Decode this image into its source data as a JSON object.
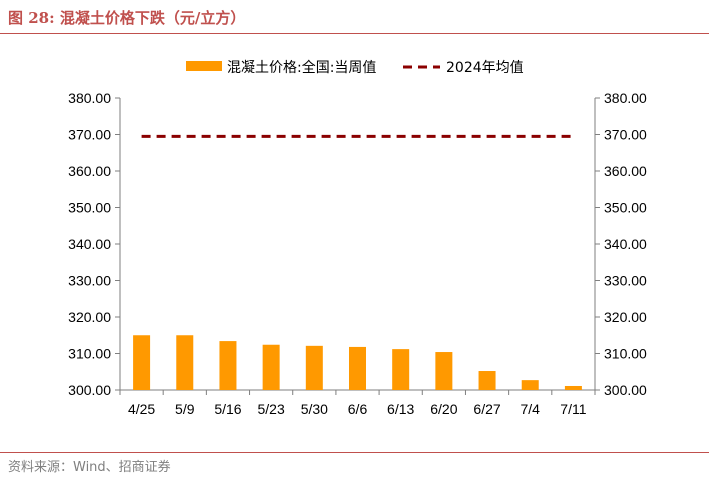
{
  "figure": {
    "title": "图 28:  混凝土价格下跌（元/立方）",
    "source": "资料来源：Wind、招商证券"
  },
  "chart_data": {
    "type": "bar",
    "categories": [
      "4/25",
      "5/9",
      "5/16",
      "5/23",
      "5/30",
      "6/6",
      "6/13",
      "6/20",
      "6/27",
      "7/4",
      "7/11"
    ],
    "series": [
      {
        "name": "混凝土价格:全国:当周值",
        "kind": "bar",
        "color": "#ff9900",
        "values": [
          315.0,
          315.0,
          313.4,
          312.4,
          312.1,
          311.8,
          311.2,
          310.4,
          305.2,
          302.7,
          301.1
        ]
      },
      {
        "name": "2024年均值",
        "kind": "line",
        "style": "dashed",
        "color": "#8b0000",
        "values": [
          369.5,
          369.5,
          369.5,
          369.5,
          369.5,
          369.5,
          369.5,
          369.5,
          369.5,
          369.5,
          369.5
        ]
      }
    ],
    "ylim": [
      300,
      380
    ],
    "yticks": [
      "300.00",
      "310.00",
      "320.00",
      "330.00",
      "340.00",
      "350.00",
      "360.00",
      "370.00",
      "380.00"
    ],
    "y_axis_dual": true,
    "grid": false,
    "legend": "top-center"
  }
}
